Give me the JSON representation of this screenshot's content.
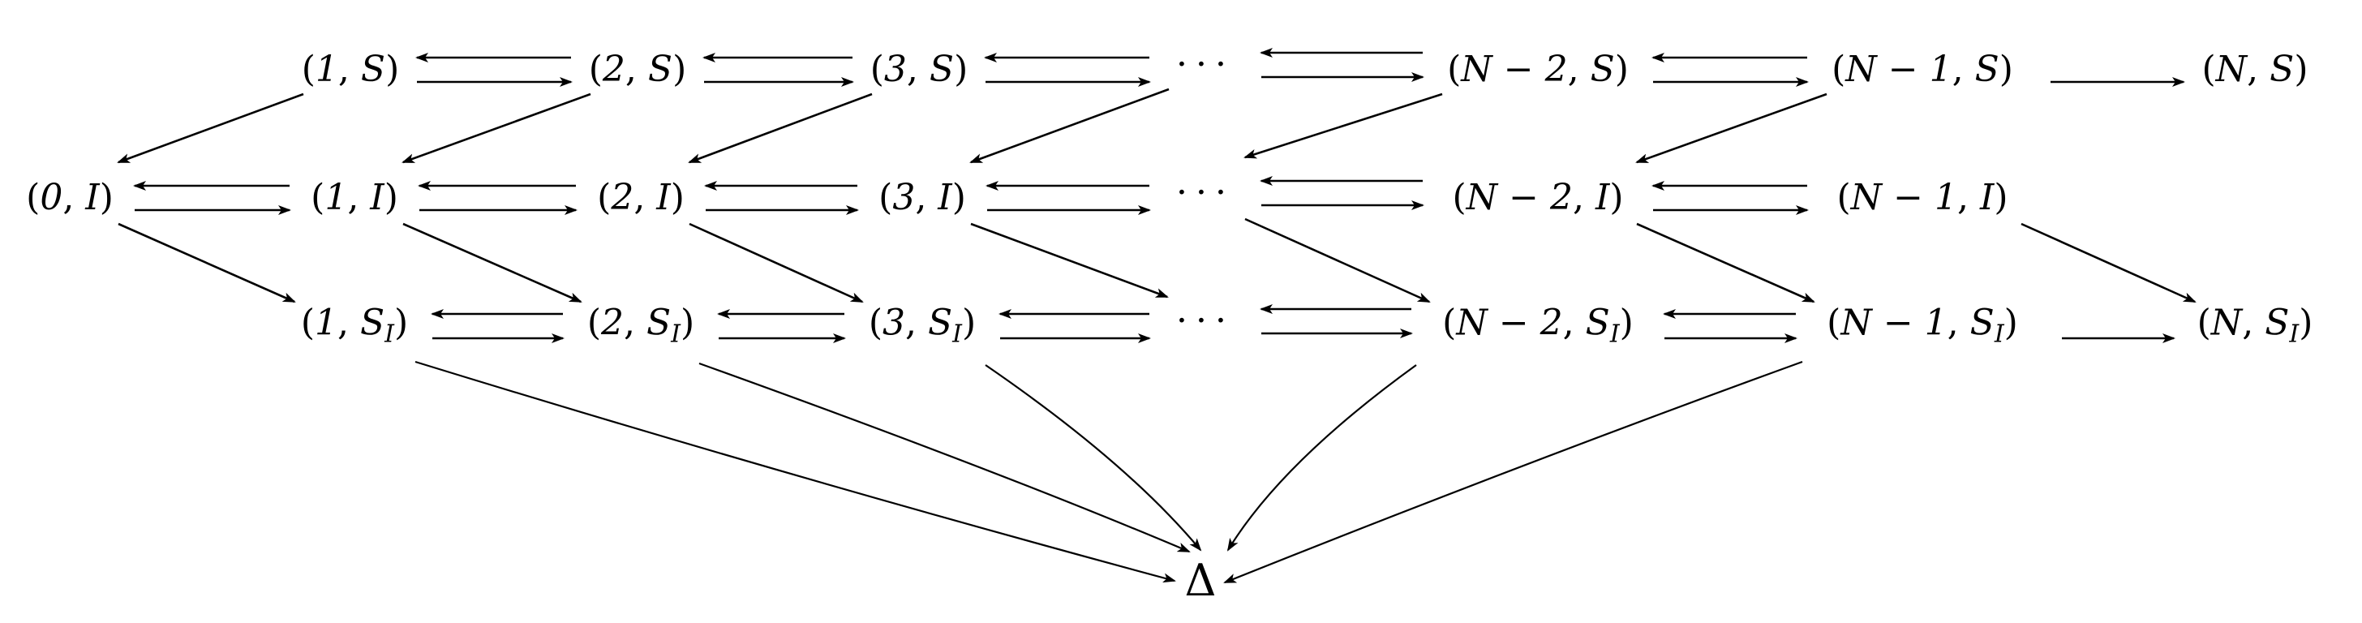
{
  "diagram": {
    "rows": {
      "S": [
        {
          "id": "1S",
          "kind": "pair",
          "n": "1",
          "s": "S",
          "sub": ""
        },
        {
          "id": "2S",
          "kind": "pair",
          "n": "2",
          "s": "S",
          "sub": ""
        },
        {
          "id": "3S",
          "kind": "pair",
          "n": "3",
          "s": "S",
          "sub": ""
        },
        {
          "id": "dotsS",
          "kind": "dots",
          "text": "···"
        },
        {
          "id": "N2S",
          "kind": "pair",
          "n": "N − 2",
          "s": "S",
          "sub": ""
        },
        {
          "id": "N1S",
          "kind": "pair",
          "n": "N − 1",
          "s": "S",
          "sub": ""
        },
        {
          "id": "NS",
          "kind": "pair",
          "n": "N",
          "s": "S",
          "sub": ""
        }
      ],
      "I": [
        {
          "id": "0I",
          "kind": "pair",
          "n": "0",
          "s": "I",
          "sub": ""
        },
        {
          "id": "1I",
          "kind": "pair",
          "n": "1",
          "s": "I",
          "sub": ""
        },
        {
          "id": "2I",
          "kind": "pair",
          "n": "2",
          "s": "I",
          "sub": ""
        },
        {
          "id": "3I",
          "kind": "pair",
          "n": "3",
          "s": "I",
          "sub": ""
        },
        {
          "id": "dotsI",
          "kind": "dots",
          "text": "···"
        },
        {
          "id": "N2I",
          "kind": "pair",
          "n": "N − 2",
          "s": "I",
          "sub": ""
        },
        {
          "id": "N1I",
          "kind": "pair",
          "n": "N − 1",
          "s": "I",
          "sub": ""
        }
      ],
      "SI": [
        {
          "id": "1SI",
          "kind": "pair",
          "n": "1",
          "s": "S",
          "sub": "I"
        },
        {
          "id": "2SI",
          "kind": "pair",
          "n": "2",
          "s": "S",
          "sub": "I"
        },
        {
          "id": "3SI",
          "kind": "pair",
          "n": "3",
          "s": "S",
          "sub": "I"
        },
        {
          "id": "dotsSI",
          "kind": "dots",
          "text": "···"
        },
        {
          "id": "N2SI",
          "kind": "pair",
          "n": "N − 2",
          "s": "S",
          "sub": "I"
        },
        {
          "id": "N1SI",
          "kind": "pair",
          "n": "N − 1",
          "s": "S",
          "sub": "I"
        },
        {
          "id": "NSI",
          "kind": "pair",
          "n": "N",
          "s": "S",
          "sub": "I"
        }
      ]
    },
    "sink": {
      "id": "Delta",
      "kind": "sink",
      "text": "Δ"
    },
    "edges": {
      "bidirectional": [
        [
          "1S",
          "2S"
        ],
        [
          "2S",
          "3S"
        ],
        [
          "3S",
          "dotsS"
        ],
        [
          "dotsS",
          "N2S"
        ],
        [
          "N2S",
          "N1S"
        ],
        [
          "0I",
          "1I"
        ],
        [
          "1I",
          "2I"
        ],
        [
          "2I",
          "3I"
        ],
        [
          "3I",
          "dotsI"
        ],
        [
          "dotsI",
          "N2I"
        ],
        [
          "N2I",
          "N1I"
        ],
        [
          "1SI",
          "2SI"
        ],
        [
          "2SI",
          "3SI"
        ],
        [
          "3SI",
          "dotsSI"
        ],
        [
          "dotsSI",
          "N2SI"
        ],
        [
          "N2SI",
          "N1SI"
        ]
      ],
      "forward": [
        [
          "N1S",
          "NS"
        ],
        [
          "N1SI",
          "NSI"
        ]
      ],
      "s_to_i": [
        [
          "1S",
          "0I"
        ],
        [
          "2S",
          "1I"
        ],
        [
          "3S",
          "2I"
        ],
        [
          "dotsS",
          "3I"
        ],
        [
          "N2S",
          "dotsI"
        ],
        [
          "N1S",
          "N2I"
        ]
      ],
      "i_to_si": [
        [
          "0I",
          "1SI"
        ],
        [
          "1I",
          "2SI"
        ],
        [
          "2I",
          "3SI"
        ],
        [
          "3I",
          "dotsSI"
        ],
        [
          "dotsI",
          "N2SI"
        ],
        [
          "N2I",
          "N1SI"
        ],
        [
          "N1I",
          "NSI"
        ]
      ],
      "to_sink": [
        [
          "1SI",
          "Delta"
        ],
        [
          "2SI",
          "Delta"
        ],
        [
          "3SI",
          "Delta"
        ],
        [
          "N2SI",
          "Delta"
        ],
        [
          "N1SI",
          "Delta"
        ]
      ]
    }
  }
}
